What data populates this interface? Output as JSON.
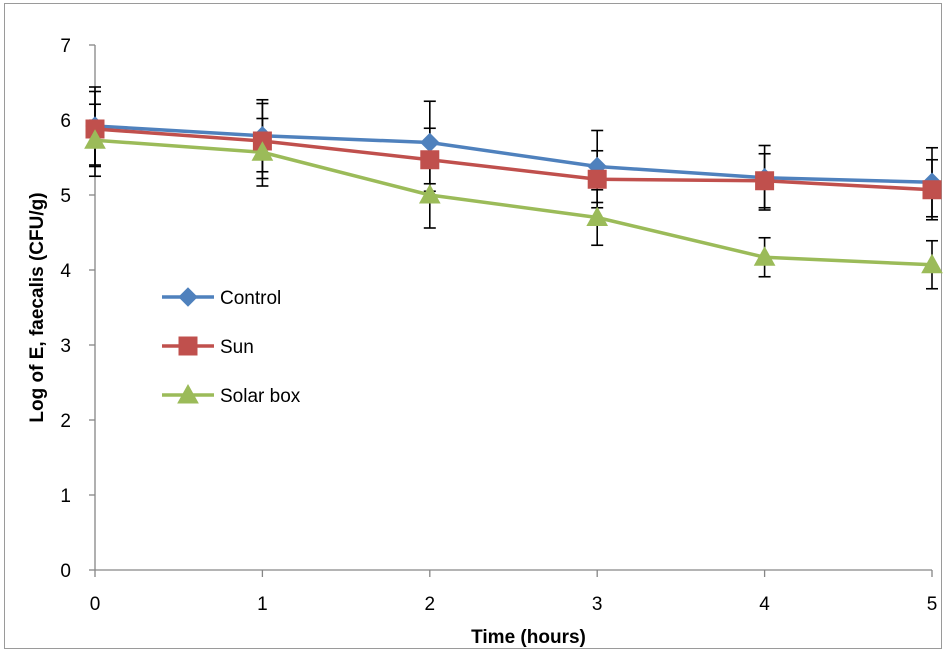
{
  "chart_data": {
    "type": "line",
    "xlabel": "Time (hours)",
    "ylabel": "Log of E, faecalis (CFU/g)",
    "x": [
      0,
      1,
      2,
      3,
      4,
      5
    ],
    "xlim": [
      0,
      5
    ],
    "ylim": [
      0,
      7
    ],
    "yticks": [
      0,
      1,
      2,
      3,
      4,
      5,
      6,
      7
    ],
    "xticks": [
      0,
      1,
      2,
      3,
      4,
      5
    ],
    "grid": false,
    "legend_position": "left",
    "series": [
      {
        "name": "Control",
        "color": "#4F81BD",
        "marker": "diamond",
        "values": [
          5.92,
          5.79,
          5.7,
          5.38,
          5.23,
          5.17
        ],
        "error": [
          0.52,
          0.48,
          0.55,
          0.48,
          0.43,
          0.46
        ]
      },
      {
        "name": "Sun",
        "color": "#C0504D",
        "marker": "square",
        "values": [
          5.88,
          5.72,
          5.47,
          5.21,
          5.19,
          5.07
        ],
        "error": [
          0.5,
          0.5,
          0.42,
          0.38,
          0.36,
          0.4
        ]
      },
      {
        "name": "Solar box",
        "color": "#9BBB59",
        "marker": "triangle",
        "values": [
          5.73,
          5.57,
          5.0,
          4.7,
          4.17,
          4.07
        ],
        "error": [
          0.48,
          0.45,
          0.44,
          0.37,
          0.26,
          0.32
        ]
      }
    ]
  }
}
